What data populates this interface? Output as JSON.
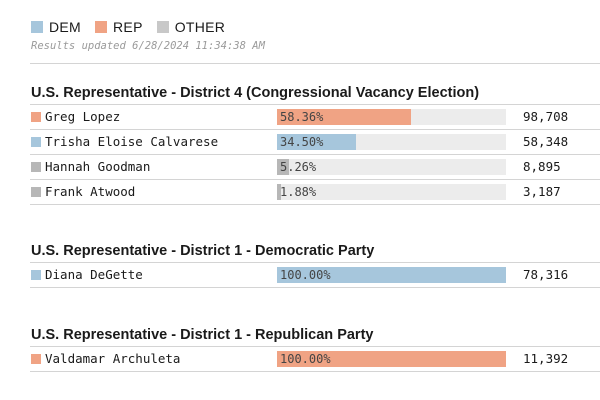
{
  "legend": {
    "items": [
      {
        "label": "DEM",
        "color": "#a6c6dc"
      },
      {
        "label": "REP",
        "color": "#f0a384"
      },
      {
        "label": "OTHER",
        "color": "#c8c8c8"
      }
    ]
  },
  "updated": "Results updated 6/28/2024 11:34:38 AM",
  "colors": {
    "DEM": "#a6c6dc",
    "REP": "#f0a384",
    "OTHER": "#b7b7b7",
    "track": "#ececec"
  },
  "races": [
    {
      "title": "U.S. Representative - District 4 (Congressional Vacancy Election)",
      "candidates": [
        {
          "name": "Greg Lopez",
          "party": "REP",
          "percent": 58.36,
          "percent_label": "58.36%",
          "votes": "98,708"
        },
        {
          "name": "Trisha Eloise Calvarese",
          "party": "DEM",
          "percent": 34.5,
          "percent_label": "34.50%",
          "votes": "58,348"
        },
        {
          "name": "Hannah Goodman",
          "party": "OTHER",
          "percent": 5.26,
          "percent_label": "5.26%",
          "votes": "8,895"
        },
        {
          "name": "Frank Atwood",
          "party": "OTHER",
          "percent": 1.88,
          "percent_label": "1.88%",
          "votes": "3,187"
        }
      ]
    },
    {
      "title": "U.S. Representative - District 1 - Democratic Party",
      "candidates": [
        {
          "name": "Diana DeGette",
          "party": "DEM",
          "percent": 100.0,
          "percent_label": "100.00%",
          "votes": "78,316"
        }
      ]
    },
    {
      "title": "U.S. Representative - District 1 - Republican Party",
      "candidates": [
        {
          "name": "Valdamar Archuleta",
          "party": "REP",
          "percent": 100.0,
          "percent_label": "100.00%",
          "votes": "11,392"
        }
      ]
    }
  ]
}
